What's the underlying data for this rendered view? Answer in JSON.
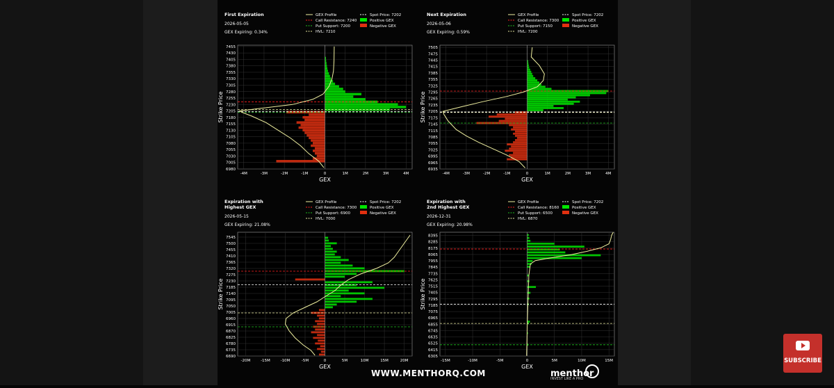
{
  "footer": {
    "website": "WWW.MENTHORQ.COM",
    "brand": "menthor",
    "tagline": "INVEST LIKE A PRO",
    "subscribe": "SUBSCRIBE"
  },
  "legend_labels": {
    "gex_profile": "GEX Profile",
    "spot_price": "Spot Price",
    "call_resistance": "Call Resistance",
    "put_support": "Put Support",
    "hvl": "HVL",
    "positive": "Positive GEX",
    "negative": "Negative GEX"
  },
  "colors": {
    "positive": "#00e600",
    "negative": "#e03010",
    "profile": "#f0f0a0",
    "resistance": "#ff2020",
    "support": "#20c020",
    "spot": "#ffffff",
    "hvl": "#e8e8a0"
  },
  "chart_data": [
    {
      "type": "bar",
      "orientation": "horizontal",
      "title": "First Expiration",
      "date": "2026-05-05",
      "gex_expiring": "GEX Expiring: 0.34%",
      "xlabel": "GEX",
      "ylabel": "Strike Price",
      "xlim": [
        -4.3,
        4.3
      ],
      "ylim": [
        6980,
        7460
      ],
      "xticks": [
        -4,
        -3,
        -2,
        -1,
        0,
        1,
        2,
        3,
        4
      ],
      "xtick_labels": [
        "-4M",
        "-3M",
        "-2M",
        "-1M",
        "0",
        "1M",
        "2M",
        "3M",
        "4M"
      ],
      "yticks": [
        6980,
        7005,
        7030,
        7055,
        7080,
        7105,
        7130,
        7155,
        7180,
        7205,
        7230,
        7255,
        7280,
        7305,
        7330,
        7355,
        7380,
        7405,
        7430,
        7455
      ],
      "bar_height": 10,
      "levels": {
        "spot": 7202,
        "call_resistance": 7240,
        "put_support": 7200,
        "hvl": 7210
      },
      "bars": [
        [
          7010,
          -2.4
        ],
        [
          7020,
          -0.6
        ],
        [
          7030,
          -0.4
        ],
        [
          7040,
          -0.5
        ],
        [
          7050,
          -0.6
        ],
        [
          7060,
          -0.5
        ],
        [
          7070,
          -0.7
        ],
        [
          7080,
          -0.6
        ],
        [
          7090,
          -0.7
        ],
        [
          7100,
          -0.8
        ],
        [
          7110,
          -0.9
        ],
        [
          7120,
          -1.0
        ],
        [
          7130,
          -1.1
        ],
        [
          7140,
          -1.3
        ],
        [
          7150,
          -1.2
        ],
        [
          7160,
          -1.4
        ],
        [
          7170,
          -1.0
        ],
        [
          7180,
          -1.1
        ],
        [
          7190,
          -0.8
        ],
        [
          7200,
          -1.9
        ],
        [
          7210,
          3.2
        ],
        [
          7220,
          4.0
        ],
        [
          7230,
          3.6
        ],
        [
          7240,
          2.6
        ],
        [
          7250,
          2.0
        ],
        [
          7260,
          1.4
        ],
        [
          7270,
          1.8
        ],
        [
          7280,
          1.0
        ],
        [
          7290,
          0.9
        ],
        [
          7300,
          0.7
        ],
        [
          7310,
          0.5
        ],
        [
          7320,
          0.4
        ],
        [
          7330,
          0.3
        ],
        [
          7340,
          0.25
        ],
        [
          7350,
          0.2
        ],
        [
          7360,
          0.15
        ],
        [
          7370,
          0.12
        ],
        [
          7380,
          0.1
        ],
        [
          7390,
          0.08
        ],
        [
          7400,
          0.06
        ],
        [
          7410,
          0.05
        ]
      ],
      "profile": [
        [
          6985,
          -0.05
        ],
        [
          7010,
          -0.3
        ],
        [
          7040,
          -0.8
        ],
        [
          7070,
          -1.2
        ],
        [
          7100,
          -1.7
        ],
        [
          7130,
          -2.3
        ],
        [
          7160,
          -2.9
        ],
        [
          7185,
          -3.6
        ],
        [
          7200,
          -4.1
        ],
        [
          7205,
          -4.2
        ],
        [
          7215,
          -3.2
        ],
        [
          7230,
          -1.6
        ],
        [
          7250,
          -0.6
        ],
        [
          7270,
          -0.1
        ],
        [
          7300,
          0.2
        ],
        [
          7330,
          0.35
        ],
        [
          7360,
          0.42
        ],
        [
          7400,
          0.45
        ],
        [
          7455,
          0.46
        ]
      ]
    },
    {
      "type": "bar",
      "orientation": "horizontal",
      "title": "Next Expiration",
      "date": "2026-05-06",
      "gex_expiring": "GEX Expiring: 0.59%",
      "xlabel": "GEX",
      "ylabel": "Strike Price",
      "xlim": [
        -4.3,
        4.3
      ],
      "ylim": [
        6935,
        7515
      ],
      "xticks": [
        -4,
        -3,
        -2,
        -1,
        0,
        1,
        2,
        3,
        4
      ],
      "xtick_labels": [
        "-4M",
        "-3M",
        "-2M",
        "-1M",
        "0",
        "1M",
        "2M",
        "3M",
        "4M"
      ],
      "yticks": [
        6935,
        6965,
        6995,
        7025,
        7055,
        7085,
        7115,
        7145,
        7175,
        7205,
        7235,
        7265,
        7295,
        7325,
        7355,
        7385,
        7415,
        7445,
        7475,
        7505
      ],
      "bar_height": 10,
      "levels": {
        "spot": 7202,
        "call_resistance": 7300,
        "put_support": 7150,
        "hvl": 7200
      },
      "bars": [
        [
          6980,
          -1.0
        ],
        [
          6990,
          -0.8
        ],
        [
          7000,
          -0.9
        ],
        [
          7010,
          -0.7
        ],
        [
          7020,
          -1.1
        ],
        [
          7030,
          -0.9
        ],
        [
          7040,
          -0.8
        ],
        [
          7050,
          -1.0
        ],
        [
          7060,
          -0.7
        ],
        [
          7070,
          -0.6
        ],
        [
          7080,
          -0.5
        ],
        [
          7090,
          -0.6
        ],
        [
          7100,
          -0.7
        ],
        [
          7110,
          -0.6
        ],
        [
          7120,
          -0.8
        ],
        [
          7130,
          -0.7
        ],
        [
          7140,
          -0.9
        ],
        [
          7150,
          -2.5
        ],
        [
          7160,
          -1.4
        ],
        [
          7170,
          -1.1
        ],
        [
          7180,
          -1.9
        ],
        [
          7190,
          -1.5
        ],
        [
          7200,
          -0.6
        ],
        [
          7210,
          0.8
        ],
        [
          7220,
          1.8
        ],
        [
          7230,
          1.3
        ],
        [
          7240,
          2.3
        ],
        [
          7250,
          2.6
        ],
        [
          7260,
          2.0
        ],
        [
          7270,
          2.4
        ],
        [
          7280,
          3.1
        ],
        [
          7290,
          3.9
        ],
        [
          7300,
          4.0
        ],
        [
          7310,
          1.2
        ],
        [
          7320,
          0.9
        ],
        [
          7330,
          0.7
        ],
        [
          7340,
          0.6
        ],
        [
          7350,
          0.5
        ],
        [
          7360,
          0.4
        ],
        [
          7370,
          0.3
        ],
        [
          7380,
          0.25
        ],
        [
          7390,
          0.2
        ],
        [
          7400,
          0.15
        ],
        [
          7410,
          0.1
        ],
        [
          7420,
          0.08
        ],
        [
          7430,
          0.06
        ],
        [
          7440,
          0.05
        ]
      ],
      "profile": [
        [
          6940,
          -0.1
        ],
        [
          6970,
          -0.4
        ],
        [
          7000,
          -1.0
        ],
        [
          7030,
          -1.7
        ],
        [
          7060,
          -2.4
        ],
        [
          7090,
          -3.0
        ],
        [
          7120,
          -3.5
        ],
        [
          7160,
          -3.9
        ],
        [
          7190,
          -4.1
        ],
        [
          7205,
          -4.15
        ],
        [
          7225,
          -3.3
        ],
        [
          7250,
          -2.2
        ],
        [
          7275,
          -1.0
        ],
        [
          7295,
          -0.2
        ],
        [
          7320,
          0.5
        ],
        [
          7350,
          0.8
        ],
        [
          7380,
          0.85
        ],
        [
          7420,
          0.6
        ],
        [
          7460,
          0.2
        ],
        [
          7505,
          0.25
        ]
      ]
    },
    {
      "type": "bar",
      "orientation": "horizontal",
      "title": "Expiration with\nHighest GEX",
      "date": "2026-05-15",
      "gex_expiring": "GEX Expiring: 21.08%",
      "xlabel": "GEX",
      "ylabel": "Strike Price",
      "xlim": [
        -22,
        22
      ],
      "ylim": [
        6690,
        7580
      ],
      "xticks": [
        -20,
        -15,
        -10,
        -5,
        0,
        5,
        10,
        15,
        20
      ],
      "xtick_labels": [
        "-20M",
        "-15M",
        "-10M",
        "-5M",
        "0",
        "5M",
        "10M",
        "15M",
        "20M"
      ],
      "yticks": [
        6690,
        6735,
        6780,
        6825,
        6870,
        6915,
        6960,
        7005,
        7050,
        7095,
        7140,
        7185,
        7230,
        7275,
        7320,
        7365,
        7410,
        7455,
        7500,
        7545
      ],
      "bar_height": 15,
      "levels": {
        "spot": 7202,
        "call_resistance": 7300,
        "put_support": 6900,
        "hvl": 7000
      },
      "bars": [
        [
          6700,
          -1.5
        ],
        [
          6720,
          -1.0
        ],
        [
          6740,
          -2.0
        ],
        [
          6760,
          -1.2
        ],
        [
          6780,
          -2.5
        ],
        [
          6800,
          -1.8
        ],
        [
          6820,
          -3.0
        ],
        [
          6840,
          -2.0
        ],
        [
          6860,
          -3.5
        ],
        [
          6880,
          -2.5
        ],
        [
          6900,
          -3.0
        ],
        [
          6920,
          -2.0
        ],
        [
          6940,
          -2.5
        ],
        [
          6960,
          -1.5
        ],
        [
          6980,
          -2.0
        ],
        [
          7000,
          -3.5
        ],
        [
          7020,
          -1.5
        ],
        [
          7040,
          2.0
        ],
        [
          7060,
          3.0
        ],
        [
          7080,
          8.0
        ],
        [
          7100,
          12.0
        ],
        [
          7120,
          4.0
        ],
        [
          7140,
          10.0
        ],
        [
          7160,
          6.0
        ],
        [
          7180,
          15.0
        ],
        [
          7200,
          8.0
        ],
        [
          7220,
          12.0
        ],
        [
          7240,
          -7.5
        ],
        [
          7260,
          5.0
        ],
        [
          7280,
          8.0
        ],
        [
          7300,
          20.0
        ],
        [
          7320,
          10.0
        ],
        [
          7340,
          7.0
        ],
        [
          7360,
          4.0
        ],
        [
          7380,
          6.0
        ],
        [
          7400,
          4.0
        ],
        [
          7420,
          2.5
        ],
        [
          7440,
          3.0
        ],
        [
          7460,
          2.0
        ],
        [
          7480,
          1.5
        ],
        [
          7500,
          3.0
        ],
        [
          7520,
          1.0
        ],
        [
          7540,
          0.8
        ]
      ],
      "profile": [
        [
          6695,
          -2.5
        ],
        [
          6730,
          -3.5
        ],
        [
          6770,
          -5.5
        ],
        [
          6820,
          -7.5
        ],
        [
          6870,
          -9.0
        ],
        [
          6920,
          -10.0
        ],
        [
          6960,
          -9.8
        ],
        [
          7000,
          -8.0
        ],
        [
          7040,
          -5.0
        ],
        [
          7080,
          -2.0
        ],
        [
          7120,
          0.2
        ],
        [
          7160,
          2.5
        ],
        [
          7200,
          4.0
        ],
        [
          7240,
          6.0
        ],
        [
          7280,
          9.0
        ],
        [
          7320,
          13.0
        ],
        [
          7360,
          16.0
        ],
        [
          7400,
          17.5
        ],
        [
          7440,
          18.5
        ],
        [
          7480,
          19.5
        ],
        [
          7520,
          20.5
        ],
        [
          7560,
          21.5
        ]
      ]
    },
    {
      "type": "bar",
      "orientation": "horizontal",
      "title": "Expiration with\n2nd Highest GEX",
      "date": "2026-12-31",
      "gex_expiring": "GEX Expiring: 20.98%",
      "xlabel": "GEX",
      "ylabel": "Strike Price",
      "xlim": [
        -16,
        16
      ],
      "ylim": [
        6305,
        8450
      ],
      "xticks": [
        -15,
        -10,
        -5,
        0,
        5,
        10,
        15
      ],
      "xtick_labels": [
        "-15M",
        "-10M",
        "-5M",
        "0",
        "5M",
        "10M",
        "15M"
      ],
      "yticks": [
        6305,
        6415,
        6525,
        6635,
        6745,
        6855,
        6965,
        7075,
        7185,
        7295,
        7405,
        7515,
        7625,
        7735,
        7845,
        7955,
        8065,
        8175,
        8285,
        8395
      ],
      "bar_height": 35,
      "levels": {
        "spot": 7202,
        "call_resistance": 8160,
        "put_support": 6500,
        "hvl": 6870
      },
      "bars": [
        [
          6500,
          0.2
        ],
        [
          6700,
          0.15
        ],
        [
          6870,
          0.3
        ],
        [
          6900,
          0.5
        ],
        [
          7200,
          0.3
        ],
        [
          7300,
          0.4
        ],
        [
          7400,
          0.6
        ],
        [
          7500,
          1.6
        ],
        [
          7600,
          0.4
        ],
        [
          7700,
          0.3
        ],
        [
          7850,
          0.5
        ],
        [
          7900,
          0.8
        ],
        [
          7950,
          1.0
        ],
        [
          8000,
          10.0
        ],
        [
          8050,
          13.5
        ],
        [
          8100,
          7.0
        ],
        [
          8150,
          6.0
        ],
        [
          8200,
          10.5
        ],
        [
          8250,
          5.0
        ],
        [
          8300,
          0.6
        ],
        [
          8350,
          0.4
        ],
        [
          8400,
          0.3
        ]
      ],
      "profile": [
        [
          6310,
          -0.1
        ],
        [
          6500,
          -0.05
        ],
        [
          6800,
          0.0
        ],
        [
          7100,
          0.1
        ],
        [
          7400,
          0.2
        ],
        [
          7700,
          0.3
        ],
        [
          7900,
          0.6
        ],
        [
          7960,
          1.5
        ],
        [
          8000,
          4.0
        ],
        [
          8060,
          8.0
        ],
        [
          8120,
          11.0
        ],
        [
          8180,
          13.5
        ],
        [
          8250,
          15.0
        ],
        [
          8320,
          15.3
        ],
        [
          8400,
          15.5
        ],
        [
          8450,
          15.8
        ]
      ]
    }
  ]
}
